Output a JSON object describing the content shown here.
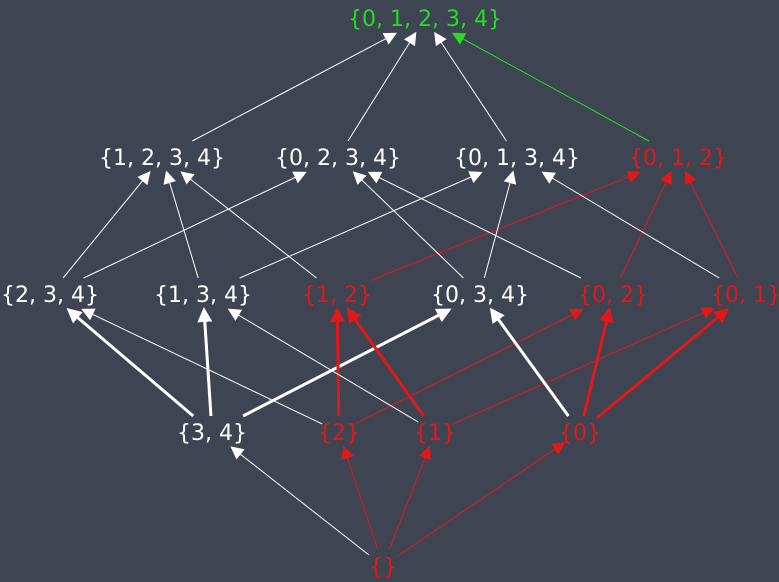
{
  "colors": {
    "background": "#3e4452",
    "white": "#ffffff",
    "red": "#e01818",
    "green": "#22dd22"
  },
  "nodes": [
    {
      "id": "n01234",
      "label": "{0, 1, 2, 3, 4}",
      "color": "green"
    },
    {
      "id": "n1234",
      "label": "{1, 2, 3, 4}",
      "color": "white"
    },
    {
      "id": "n0234",
      "label": "{0, 2, 3, 4}",
      "color": "white"
    },
    {
      "id": "n0134",
      "label": "{0, 1, 3, 4}",
      "color": "white"
    },
    {
      "id": "n012",
      "label": "{0, 1, 2}",
      "color": "red"
    },
    {
      "id": "n234",
      "label": "{2, 3, 4}",
      "color": "white"
    },
    {
      "id": "n134",
      "label": "{1, 3, 4}",
      "color": "white"
    },
    {
      "id": "n12",
      "label": "{1, 2}",
      "color": "red"
    },
    {
      "id": "n034",
      "label": "{0, 3, 4}",
      "color": "white"
    },
    {
      "id": "n02",
      "label": "{0, 2}",
      "color": "red"
    },
    {
      "id": "n01",
      "label": "{0, 1}",
      "color": "red"
    },
    {
      "id": "n34",
      "label": "{3, 4}",
      "color": "white"
    },
    {
      "id": "n2",
      "label": "{2}",
      "color": "red"
    },
    {
      "id": "n1",
      "label": "{1}",
      "color": "red"
    },
    {
      "id": "n0",
      "label": "{0}",
      "color": "red"
    },
    {
      "id": "nempty",
      "label": "{}",
      "color": "red"
    }
  ],
  "edges": [
    {
      "from": "n1234",
      "to": "n01234",
      "color": "white",
      "bold": false
    },
    {
      "from": "n0234",
      "to": "n01234",
      "color": "white",
      "bold": false
    },
    {
      "from": "n0134",
      "to": "n01234",
      "color": "white",
      "bold": false
    },
    {
      "from": "n012",
      "to": "n01234",
      "color": "green",
      "bold": false
    },
    {
      "from": "n234",
      "to": "n1234",
      "color": "white",
      "bold": false
    },
    {
      "from": "n234",
      "to": "n0234",
      "color": "white",
      "bold": false
    },
    {
      "from": "n134",
      "to": "n1234",
      "color": "white",
      "bold": false
    },
    {
      "from": "n134",
      "to": "n0134",
      "color": "white",
      "bold": false
    },
    {
      "from": "n12",
      "to": "n1234",
      "color": "white",
      "bold": false
    },
    {
      "from": "n12",
      "to": "n012",
      "color": "red",
      "bold": false
    },
    {
      "from": "n034",
      "to": "n0234",
      "color": "white",
      "bold": false
    },
    {
      "from": "n034",
      "to": "n0134",
      "color": "white",
      "bold": false
    },
    {
      "from": "n02",
      "to": "n0234",
      "color": "white",
      "bold": false
    },
    {
      "from": "n02",
      "to": "n012",
      "color": "red",
      "bold": false
    },
    {
      "from": "n01",
      "to": "n0134",
      "color": "white",
      "bold": false
    },
    {
      "from": "n01",
      "to": "n012",
      "color": "red",
      "bold": false
    },
    {
      "from": "n34",
      "to": "n234",
      "color": "white",
      "bold": true
    },
    {
      "from": "n34",
      "to": "n134",
      "color": "white",
      "bold": true
    },
    {
      "from": "n34",
      "to": "n034",
      "color": "white",
      "bold": true
    },
    {
      "from": "n2",
      "to": "n234",
      "color": "white",
      "bold": false
    },
    {
      "from": "n2",
      "to": "n12",
      "color": "red",
      "bold": true
    },
    {
      "from": "n2",
      "to": "n02",
      "color": "red",
      "bold": false
    },
    {
      "from": "n1",
      "to": "n134",
      "color": "white",
      "bold": false
    },
    {
      "from": "n1",
      "to": "n12",
      "color": "red",
      "bold": true
    },
    {
      "from": "n1",
      "to": "n01",
      "color": "red",
      "bold": false
    },
    {
      "from": "n0",
      "to": "n034",
      "color": "white",
      "bold": true
    },
    {
      "from": "n0",
      "to": "n02",
      "color": "red",
      "bold": true
    },
    {
      "from": "n0",
      "to": "n01",
      "color": "red",
      "bold": true
    },
    {
      "from": "nempty",
      "to": "n34",
      "color": "white",
      "bold": false
    },
    {
      "from": "nempty",
      "to": "n2",
      "color": "red",
      "bold": false
    },
    {
      "from": "nempty",
      "to": "n1",
      "color": "red",
      "bold": false
    },
    {
      "from": "nempty",
      "to": "n0",
      "color": "red",
      "bold": false
    }
  ]
}
